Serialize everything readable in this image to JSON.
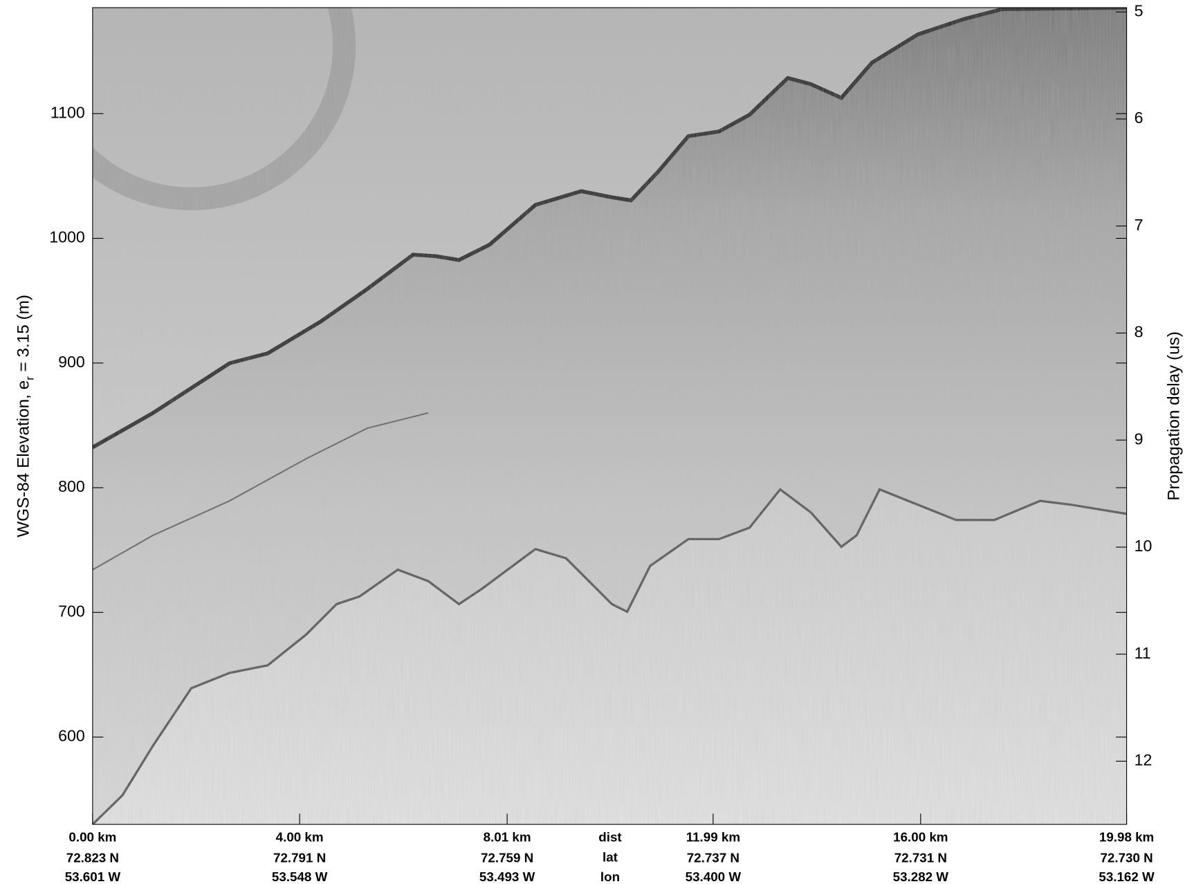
{
  "chart_data": {
    "type": "echogram",
    "ylabel": "WGS-84 Elevation, e",
    "ylabel_sub": "r",
    "ylabel_rest": " = 3.15 (m)",
    "y2label": "Propagation delay (us)",
    "ylim": [
      530,
      1185
    ],
    "yticks": [
      600,
      700,
      800,
      900,
      1000,
      1100
    ],
    "y2lim": [
      12.59,
      4.96
    ],
    "y2ticks": [
      5,
      6,
      7,
      8,
      9,
      10,
      11,
      12
    ],
    "xlim": [
      0,
      19.98
    ],
    "xticks": [
      {
        "value": 0,
        "label": "0.00 km"
      },
      {
        "value": 4,
        "label": "4.00 km"
      },
      {
        "value": 8.01,
        "label": "8.01 km"
      },
      {
        "value": 11.99,
        "label": "11.99 km"
      },
      {
        "value": 16,
        "label": "16.00 km"
      },
      {
        "value": 19.98,
        "label": "19.98 km"
      }
    ],
    "lat_labels": [
      "72.823 N",
      "72.791 N",
      "72.759 N",
      "72.737 N",
      "72.731 N",
      "72.730 N"
    ],
    "lon_labels": [
      "53.601 W",
      "53.548 W",
      "53.493 W",
      "53.400 W",
      "53.282 W",
      "53.162 W"
    ],
    "row_names": [
      "dist",
      "lat",
      "lon"
    ]
  }
}
